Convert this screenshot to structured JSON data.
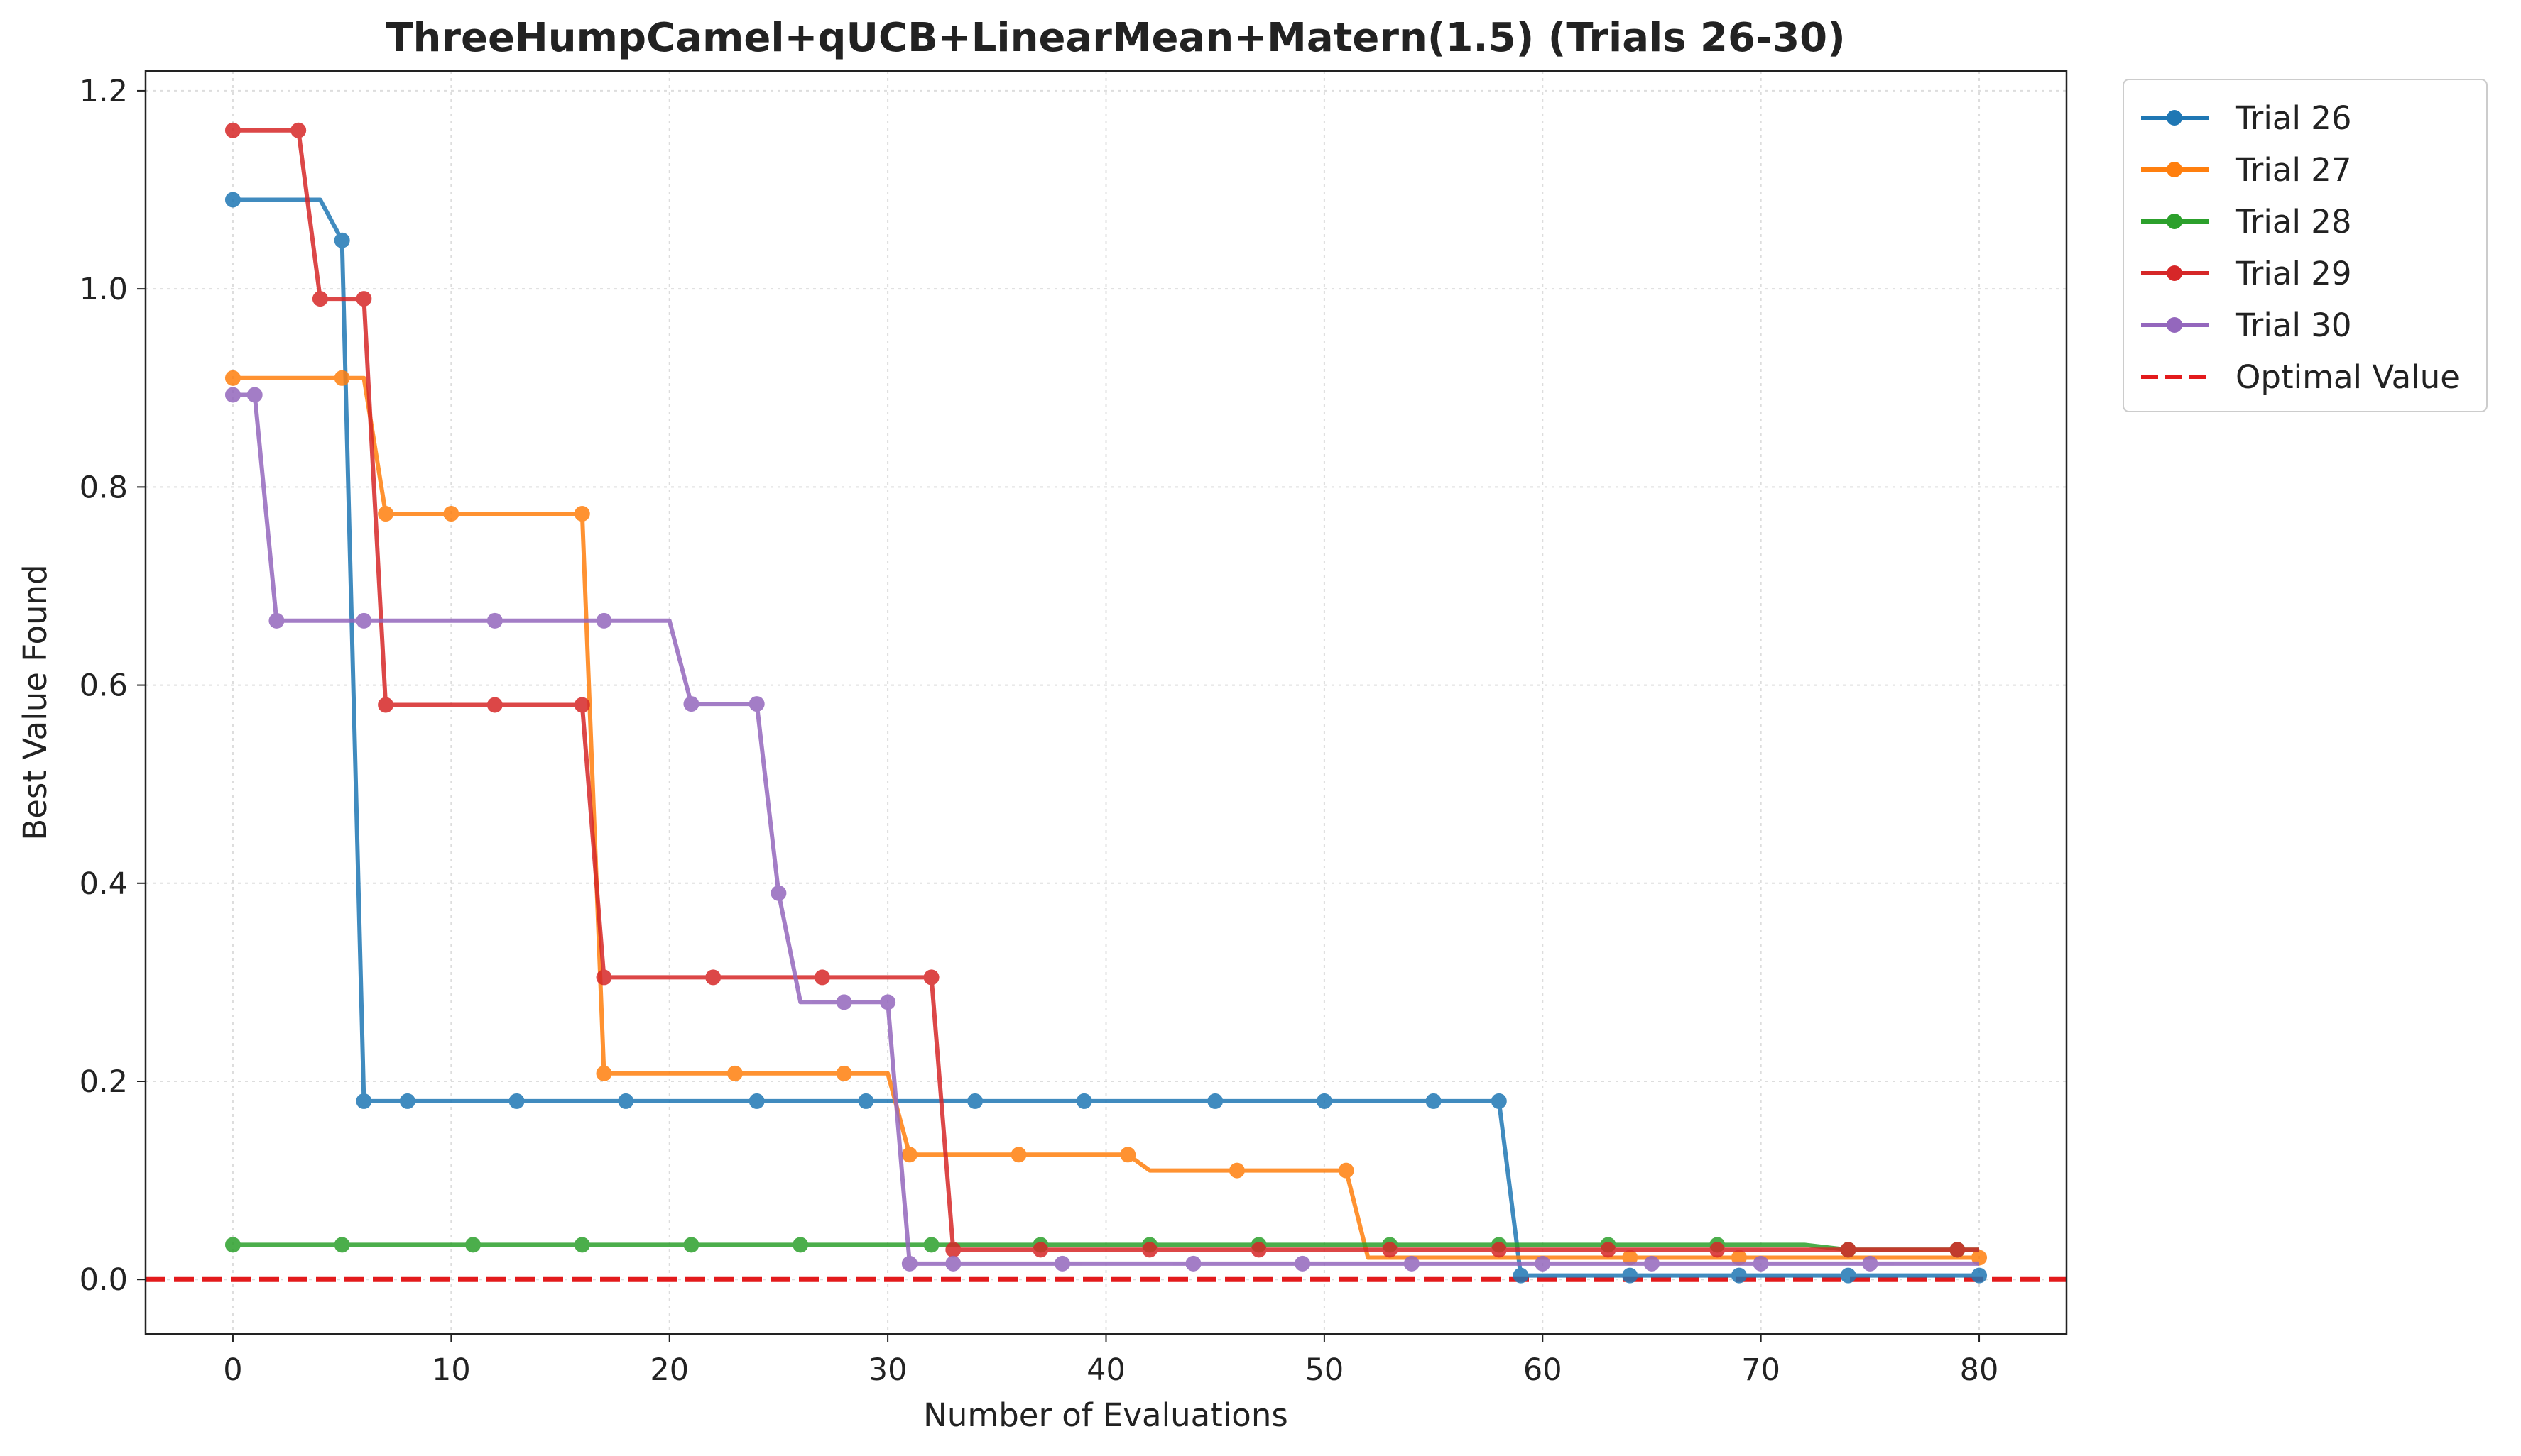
{
  "chart_data": {
    "type": "line",
    "title": "ThreeHumpCamel+qUCB+LinearMean+Matern(1.5) (Trials 26-30)",
    "xlabel": "Number of Evaluations",
    "ylabel": "Best Value Found",
    "xlim": [
      -4,
      84
    ],
    "ylim": [
      -0.055,
      1.22
    ],
    "xticks": [
      0,
      10,
      20,
      30,
      40,
      50,
      60,
      70,
      80
    ],
    "yticks": [
      0.0,
      0.2,
      0.4,
      0.6,
      0.8,
      1.0,
      1.2
    ],
    "xtick_labels": [
      "0",
      "10",
      "20",
      "30",
      "40",
      "50",
      "60",
      "70",
      "80"
    ],
    "ytick_labels": [
      "0.0",
      "0.2",
      "0.4",
      "0.6",
      "0.8",
      "1.0",
      "1.2"
    ],
    "grid": true,
    "legend_position": "outside-top-right",
    "series": [
      {
        "name": "Trial 26",
        "color": "#1f77b4",
        "x": [
          0,
          4,
          5,
          6,
          8,
          13,
          18,
          24,
          29,
          34,
          39,
          45,
          50,
          55,
          58,
          59,
          64,
          69,
          74,
          80
        ],
        "y": [
          1.09,
          1.09,
          1.049,
          0.18,
          0.18,
          0.18,
          0.18,
          0.18,
          0.18,
          0.18,
          0.18,
          0.18,
          0.18,
          0.18,
          0.18,
          0.004,
          0.004,
          0.004,
          0.004,
          0.004
        ],
        "markers": [
          0,
          5,
          6,
          8,
          13,
          18,
          24,
          29,
          34,
          39,
          45,
          50,
          55,
          58,
          59,
          64,
          69,
          74,
          80
        ]
      },
      {
        "name": "Trial 27",
        "color": "#ff7f0e",
        "x": [
          0,
          5,
          6,
          7,
          10,
          16,
          17,
          23,
          28,
          30,
          31,
          36,
          41,
          42,
          46,
          51,
          52,
          58,
          64,
          69,
          74,
          80
        ],
        "y": [
          0.91,
          0.91,
          0.91,
          0.773,
          0.773,
          0.773,
          0.208,
          0.208,
          0.208,
          0.208,
          0.126,
          0.126,
          0.126,
          0.11,
          0.11,
          0.11,
          0.022,
          0.022,
          0.022,
          0.022,
          0.022,
          0.022
        ],
        "markers": [
          0,
          5,
          7,
          10,
          16,
          17,
          23,
          28,
          31,
          36,
          41,
          46,
          51,
          64,
          69,
          80
        ]
      },
      {
        "name": "Trial 28",
        "color": "#2ca02c",
        "x": [
          0,
          5,
          11,
          16,
          21,
          26,
          32,
          37,
          42,
          47,
          53,
          58,
          63,
          68,
          72,
          74,
          80
        ],
        "y": [
          0.035,
          0.035,
          0.035,
          0.035,
          0.035,
          0.035,
          0.035,
          0.035,
          0.035,
          0.035,
          0.035,
          0.035,
          0.035,
          0.035,
          0.035,
          0.03,
          0.03
        ],
        "markers": [
          0,
          5,
          11,
          16,
          21,
          26,
          32,
          37,
          42,
          47,
          53,
          58,
          63,
          68,
          74,
          79
        ]
      },
      {
        "name": "Trial 29",
        "color": "#d62728",
        "x": [
          0,
          3,
          4,
          6,
          7,
          12,
          16,
          17,
          22,
          27,
          32,
          33,
          37,
          42,
          47,
          53,
          58,
          63,
          68,
          74,
          79,
          80
        ],
        "y": [
          1.16,
          1.16,
          0.99,
          0.99,
          0.58,
          0.58,
          0.58,
          0.305,
          0.305,
          0.305,
          0.305,
          0.03,
          0.03,
          0.03,
          0.03,
          0.03,
          0.03,
          0.03,
          0.03,
          0.03,
          0.03,
          0.03
        ],
        "markers": [
          0,
          3,
          4,
          6,
          7,
          12,
          16,
          17,
          22,
          27,
          32,
          33,
          37,
          42,
          47,
          53,
          58,
          63,
          68,
          74,
          79
        ]
      },
      {
        "name": "Trial 30",
        "color": "#9467bd",
        "x": [
          0,
          1,
          2,
          6,
          12,
          17,
          20,
          21,
          24,
          25,
          26,
          28,
          30,
          31,
          33,
          38,
          44,
          49,
          54,
          60,
          65,
          70,
          75,
          80
        ],
        "y": [
          0.893,
          0.893,
          0.665,
          0.665,
          0.665,
          0.665,
          0.665,
          0.581,
          0.581,
          0.39,
          0.28,
          0.28,
          0.28,
          0.016,
          0.016,
          0.016,
          0.016,
          0.016,
          0.016,
          0.016,
          0.016,
          0.016,
          0.016,
          0.016
        ],
        "markers": [
          0,
          1,
          2,
          6,
          12,
          17,
          21,
          24,
          25,
          28,
          30,
          31,
          33,
          38,
          44,
          49,
          54,
          60,
          65,
          70,
          75
        ]
      }
    ],
    "reference_line": {
      "name": "Optimal Value",
      "y": 0.0,
      "color": "#e31a1c",
      "style": "dashed"
    }
  }
}
